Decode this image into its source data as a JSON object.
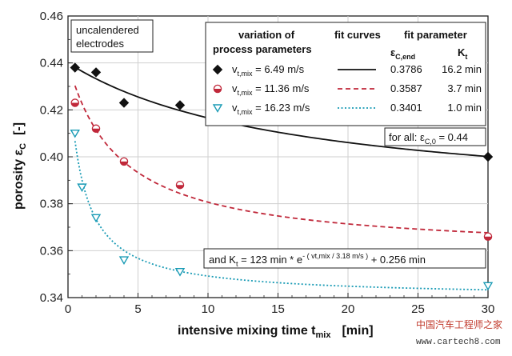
{
  "chart_data": {
    "type": "scatter",
    "xlabel": "intensive mixing time t",
    "xlabel_sub": "mix",
    "xlabel_unit": "[min]",
    "ylabel": "porosity ε",
    "ylabel_sub": "C",
    "ylabel_unit": "[-]",
    "xlim": [
      0,
      30
    ],
    "ylim": [
      0.34,
      0.46
    ],
    "xticks": [
      "0",
      "5",
      "10",
      "15",
      "20",
      "25",
      "30"
    ],
    "xtick_values": [
      0,
      5,
      10,
      15,
      20,
      25,
      30
    ],
    "yticks": [
      "0.34",
      "0.36",
      "0.38",
      "0.40",
      "0.42",
      "0.44",
      "0.46"
    ],
    "ytick_values": [
      0.34,
      0.36,
      0.38,
      0.4,
      0.42,
      0.44,
      0.46
    ],
    "series": [
      {
        "name": "vt,mix = 6.49 m/s",
        "marker": "diamond",
        "color": "#111111",
        "line_style": "solid",
        "x": [
          0.5,
          2,
          4,
          8,
          30
        ],
        "y": [
          0.438,
          0.436,
          0.423,
          0.422,
          0.4
        ],
        "fit_eps_end": 0.3786,
        "fit_Kt_min": 16.2
      },
      {
        "name": "vt,mix = 11.36 m/s",
        "marker": "circle-half",
        "color": "#c0283a",
        "line_style": "dashed",
        "x": [
          0.5,
          2,
          4,
          8,
          30
        ],
        "y": [
          0.423,
          0.412,
          0.398,
          0.388,
          0.366
        ],
        "fit_eps_end": 0.3587,
        "fit_Kt_min": 3.7
      },
      {
        "name": "vt,mix = 16.23 m/s",
        "marker": "triangle-down",
        "color": "#1a9bb5",
        "line_style": "dotted",
        "x": [
          0.5,
          1,
          2,
          4,
          8,
          30
        ],
        "y": [
          0.41,
          0.387,
          0.374,
          0.356,
          0.351,
          0.345
        ],
        "fit_eps_end": 0.3401,
        "fit_Kt_min": 1.0
      }
    ],
    "fit_eps_C0": 0.44
  },
  "annotations": {
    "corner_note_line1": "uncalendered",
    "corner_note_line2": "electrodes",
    "legend_header_col1_line1": "variation of",
    "legend_header_col1_line2": "process parameters",
    "legend_header_col2": "fit curves",
    "legend_header_col3": "fit parameter",
    "legend_param1": "ε",
    "legend_param1_sub": "C,end",
    "legend_param2": "K",
    "legend_param2_sub": "t",
    "legend_rows": [
      {
        "var": "v",
        "sub": "t,mix",
        "eq": " =  6.49 m/s",
        "eps": "0.3786",
        "kt": "16.2 min"
      },
      {
        "var": "v",
        "sub": "t,mix",
        "eq": " = 11.36 m/s",
        "eps": "0.3587",
        "kt": "3.7 min"
      },
      {
        "var": "v",
        "sub": "t,mix",
        "eq": " = 16.23 m/s",
        "eps": "0.3401",
        "kt": "1.0 min"
      }
    ],
    "for_all_prefix": "for all:  ε",
    "for_all_sub": "C,0",
    "for_all_suffix": " = 0.44",
    "formula_prefix": "and K",
    "formula_sub": "t",
    "formula_mid": " = 123 min * e",
    "formula_exp": "- ( vt,mix / 3.18 m/s )",
    "formula_suffix": " + 0.256 min"
  },
  "watermark": {
    "line1": "中国汽车工程师之家",
    "line2": "www.cartech8.com"
  }
}
